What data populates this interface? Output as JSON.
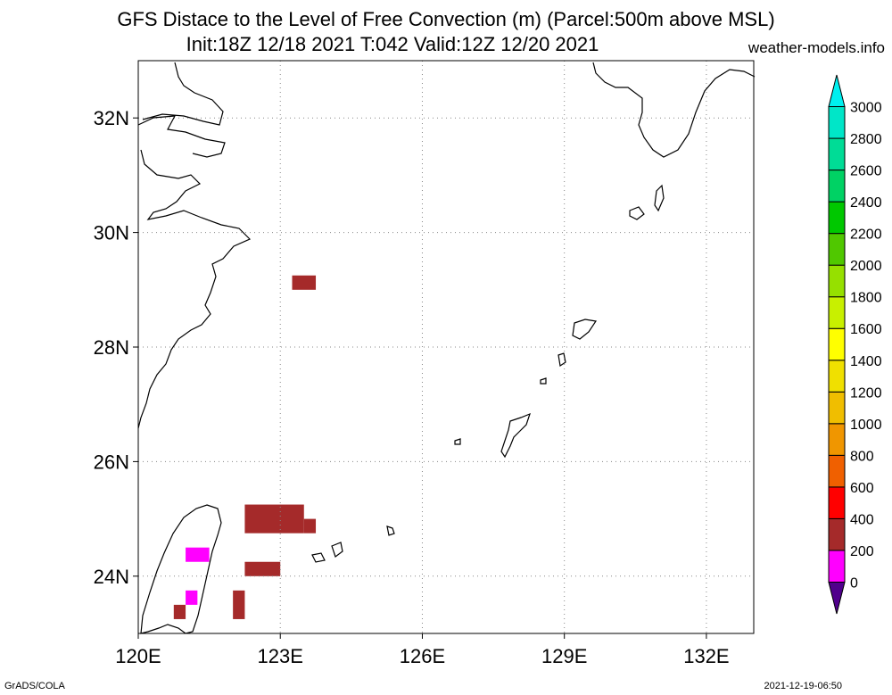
{
  "chart_data": {
    "type": "heatmap",
    "title": "GFS Distace to the Level of Free Convection (m) (Parcel:500m above MSL)",
    "subtitle": "Init:18Z 12/18 2021 T:042 Valid:12Z 12/20 2021",
    "source_label": "weather-models.info",
    "xlabel": "",
    "ylabel": "",
    "xlim": [
      120,
      133.0
    ],
    "ylim": [
      23.0,
      33.0
    ],
    "x_ticks": [
      120,
      123,
      126,
      129,
      132
    ],
    "x_tick_labels": [
      "120E",
      "123E",
      "126E",
      "129E",
      "132E"
    ],
    "y_ticks": [
      24,
      26,
      28,
      30,
      32
    ],
    "y_tick_labels": [
      "24N",
      "26N",
      "28N",
      "30N",
      "32N"
    ],
    "grid": true,
    "colorbar": {
      "levels": [
        0,
        200,
        400,
        600,
        800,
        1000,
        1200,
        1400,
        1600,
        1800,
        2000,
        2200,
        2400,
        2600,
        2800,
        3000
      ],
      "labels": [
        "0",
        "200",
        "400",
        "600",
        "800",
        "1000",
        "1200",
        "1400",
        "1600",
        "1800",
        "2000",
        "2200",
        "2400",
        "2600",
        "2800",
        "3000"
      ],
      "colors": [
        "#50008c",
        "#ff00ff",
        "#a52a2a",
        "#ff0000",
        "#f06000",
        "#f09600",
        "#f0be00",
        "#f0e000",
        "#ffff00",
        "#c8f000",
        "#96e000",
        "#50c800",
        "#00c800",
        "#00d264",
        "#00dc96",
        "#00e6c8",
        "#00f0f0"
      ]
    },
    "cells": [
      {
        "lon0": 123.25,
        "lon1": 123.75,
        "lat0": 29.0,
        "lat1": 29.25,
        "value": 300
      },
      {
        "lon0": 122.25,
        "lon1": 123.5,
        "lat0": 24.75,
        "lat1": 25.25,
        "value": 250
      },
      {
        "lon0": 123.5,
        "lon1": 123.75,
        "lat0": 24.75,
        "lat1": 25.0,
        "value": 350
      },
      {
        "lon0": 122.25,
        "lon1": 123.0,
        "lat0": 24.0,
        "lat1": 24.25,
        "value": 300
      },
      {
        "lon0": 121.0,
        "lon1": 121.5,
        "lat0": 24.25,
        "lat1": 24.5,
        "value": 100
      },
      {
        "lon0": 120.75,
        "lon1": 121.0,
        "lat0": 23.25,
        "lat1": 23.5,
        "value": 250
      },
      {
        "lon0": 121.0,
        "lon1": 121.25,
        "lat0": 23.5,
        "lat1": 23.75,
        "value": 150
      },
      {
        "lon0": 122.0,
        "lon1": 122.25,
        "lat0": 23.25,
        "lat1": 23.75,
        "value": 200
      }
    ],
    "footer_left": "GrADS/COLA",
    "footer_right": "2021-12-19-06:50"
  }
}
